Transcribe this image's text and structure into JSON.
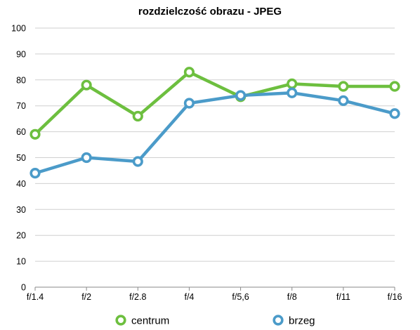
{
  "chart_data": {
    "type": "line",
    "title": "rozdzielczość obrazu - JPEG",
    "xlabel": "",
    "ylabel": "",
    "categories": [
      "f/1.4",
      "f/2",
      "f/2.8",
      "f/4",
      "f/5,6",
      "f/8",
      "f/11",
      "f/16"
    ],
    "ylim": [
      0,
      100
    ],
    "yticks": [
      0,
      10,
      20,
      30,
      40,
      50,
      60,
      70,
      80,
      90,
      100
    ],
    "grid": true,
    "legend_position": "bottom",
    "series": [
      {
        "name": "centrum",
        "color": "#6dbf3f",
        "values": [
          59,
          78,
          66,
          83,
          73.5,
          78.5,
          77.5,
          77.5
        ]
      },
      {
        "name": "brzeg",
        "color": "#4b9bc9",
        "values": [
          44,
          50,
          48.5,
          71,
          74,
          75,
          72,
          67
        ]
      }
    ]
  }
}
